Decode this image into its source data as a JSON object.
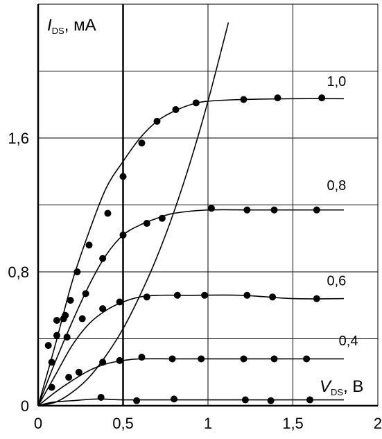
{
  "chart_data": {
    "type": "line",
    "ylabel_main": "I",
    "ylabel_sub": "DS",
    "ylabel_unit": ", мА",
    "xlabel_main": "V",
    "xlabel_sub": "DS",
    "xlabel_unit": ", В",
    "xlim": [
      0,
      2
    ],
    "ylim": [
      0,
      2.4
    ],
    "x_ticks": [
      {
        "value": 0,
        "label": "0"
      },
      {
        "value": 0.5,
        "label": "0,5"
      },
      {
        "value": 1,
        "label": "1"
      },
      {
        "value": 1.5,
        "label": "1,5"
      },
      {
        "value": 2,
        "label": "2"
      }
    ],
    "y_ticks": [
      {
        "value": 0,
        "label": "0"
      },
      {
        "value": 0.8,
        "label": "0,8"
      },
      {
        "value": 1.6,
        "label": "1,6"
      }
    ],
    "x_gridlines": [
      0.5,
      1,
      1.5,
      2
    ],
    "y_gridlines": [
      0.4,
      0.8,
      1.2,
      1.6,
      2.0,
      2.4
    ],
    "vertical_marker_x": 0.5,
    "grid": true,
    "series": [
      {
        "name": "1,0",
        "curve": [
          [
            0,
            0
          ],
          [
            0.1,
            0.36
          ],
          [
            0.2,
            0.74
          ],
          [
            0.3,
            1.04
          ],
          [
            0.4,
            1.3
          ],
          [
            0.5,
            1.46
          ],
          [
            0.6,
            1.6
          ],
          [
            0.7,
            1.7
          ],
          [
            0.8,
            1.76
          ],
          [
            0.9,
            1.8
          ],
          [
            1.0,
            1.82
          ],
          [
            1.2,
            1.83
          ],
          [
            1.5,
            1.835
          ],
          [
            1.8,
            1.835
          ]
        ],
        "points": [
          [
            0.06,
            0.36
          ],
          [
            0.11,
            0.42
          ],
          [
            0.15,
            0.52
          ],
          [
            0.19,
            0.63
          ],
          [
            0.23,
            0.8
          ],
          [
            0.3,
            0.96
          ],
          [
            0.41,
            1.15
          ],
          [
            0.5,
            1.37
          ],
          [
            0.61,
            1.57
          ],
          [
            0.7,
            1.7
          ],
          [
            0.81,
            1.77
          ],
          [
            0.93,
            1.81
          ],
          [
            1.21,
            1.83
          ],
          [
            1.41,
            1.84
          ],
          [
            1.67,
            1.84
          ]
        ]
      },
      {
        "name": "0,8",
        "curve": [
          [
            0,
            0
          ],
          [
            0.1,
            0.26
          ],
          [
            0.2,
            0.5
          ],
          [
            0.3,
            0.72
          ],
          [
            0.4,
            0.9
          ],
          [
            0.5,
            1.02
          ],
          [
            0.6,
            1.08
          ],
          [
            0.7,
            1.12
          ],
          [
            0.8,
            1.15
          ],
          [
            1.0,
            1.17
          ],
          [
            1.3,
            1.17
          ],
          [
            1.8,
            1.17
          ]
        ],
        "points": [
          [
            0.08,
            0.26
          ],
          [
            0.17,
            0.41
          ],
          [
            0.28,
            0.67
          ],
          [
            0.38,
            0.88
          ],
          [
            0.5,
            1.02
          ],
          [
            0.64,
            1.09
          ],
          [
            0.73,
            1.12
          ],
          [
            1.02,
            1.18
          ],
          [
            1.23,
            1.17
          ],
          [
            1.39,
            1.17
          ],
          [
            1.64,
            1.17
          ]
        ]
      },
      {
        "name": "0,6",
        "curve": [
          [
            0,
            0
          ],
          [
            0.1,
            0.18
          ],
          [
            0.2,
            0.36
          ],
          [
            0.3,
            0.49
          ],
          [
            0.4,
            0.57
          ],
          [
            0.5,
            0.62
          ],
          [
            0.6,
            0.65
          ],
          [
            0.7,
            0.66
          ],
          [
            0.9,
            0.66
          ],
          [
            1.2,
            0.66
          ],
          [
            1.5,
            0.64
          ],
          [
            1.8,
            0.64
          ]
        ],
        "points": [
          [
            0.08,
            0.11
          ],
          [
            0.18,
            0.17
          ],
          [
            0.24,
            0.2
          ],
          [
            0.38,
            0.26
          ],
          [
            0.48,
            0.27
          ],
          [
            0.61,
            0.29
          ],
          [
            0.79,
            0.28
          ],
          [
            0.96,
            0.28
          ],
          [
            1.21,
            0.28
          ],
          [
            1.39,
            0.28
          ],
          [
            1.58,
            0.28
          ]
        ]
      },
      {
        "name": "0,4",
        "curve": [
          [
            0,
            0
          ],
          [
            0.1,
            0.08
          ],
          [
            0.2,
            0.15
          ],
          [
            0.3,
            0.21
          ],
          [
            0.4,
            0.25
          ],
          [
            0.5,
            0.27
          ],
          [
            0.6,
            0.28
          ],
          [
            0.8,
            0.28
          ],
          [
            1.0,
            0.28
          ],
          [
            1.3,
            0.28
          ],
          [
            1.8,
            0.28
          ]
        ],
        "points": [
          [
            0.11,
            0.51
          ],
          [
            0.16,
            0.54
          ],
          [
            0.26,
            0.52
          ],
          [
            0.38,
            0.58
          ],
          [
            0.48,
            0.62
          ],
          [
            0.64,
            0.65
          ],
          [
            0.82,
            0.66
          ],
          [
            0.98,
            0.66
          ],
          [
            1.23,
            0.66
          ],
          [
            1.38,
            0.65
          ],
          [
            1.64,
            0.64
          ]
        ]
      },
      {
        "name": "",
        "curve": [
          [
            0,
            0
          ],
          [
            0.08,
            0.02
          ],
          [
            0.2,
            0.03
          ],
          [
            0.35,
            0.04
          ],
          [
            0.5,
            0.035
          ],
          [
            0.8,
            0.035
          ],
          [
            1.2,
            0.035
          ],
          [
            1.8,
            0.035
          ]
        ],
        "points": [
          [
            0.37,
            0.05
          ],
          [
            0.58,
            0.03
          ],
          [
            0.8,
            0.04
          ],
          [
            1.22,
            0.035
          ],
          [
            1.37,
            0.03
          ],
          [
            1.6,
            0.035
          ]
        ]
      }
    ],
    "boundary_curve": {
      "points": [
        [
          0,
          0
        ],
        [
          0.1,
          0.02
        ],
        [
          0.2,
          0.08
        ],
        [
          0.3,
          0.17
        ],
        [
          0.4,
          0.3
        ],
        [
          0.5,
          0.46
        ],
        [
          0.6,
          0.66
        ],
        [
          0.7,
          0.89
        ],
        [
          0.8,
          1.16
        ],
        [
          0.9,
          1.47
        ],
        [
          1.0,
          1.82
        ],
        [
          1.1,
          2.21
        ],
        [
          1.12,
          2.29
        ]
      ]
    },
    "series_label_positions": [
      {
        "label": "1,0",
        "x": 1.7,
        "y": 1.91
      },
      {
        "label": "0,8",
        "x": 1.7,
        "y": 1.29
      },
      {
        "label": "0,6",
        "x": 1.7,
        "y": 0.72
      },
      {
        "label": "0,4",
        "x": 1.77,
        "y": 0.36
      }
    ]
  }
}
